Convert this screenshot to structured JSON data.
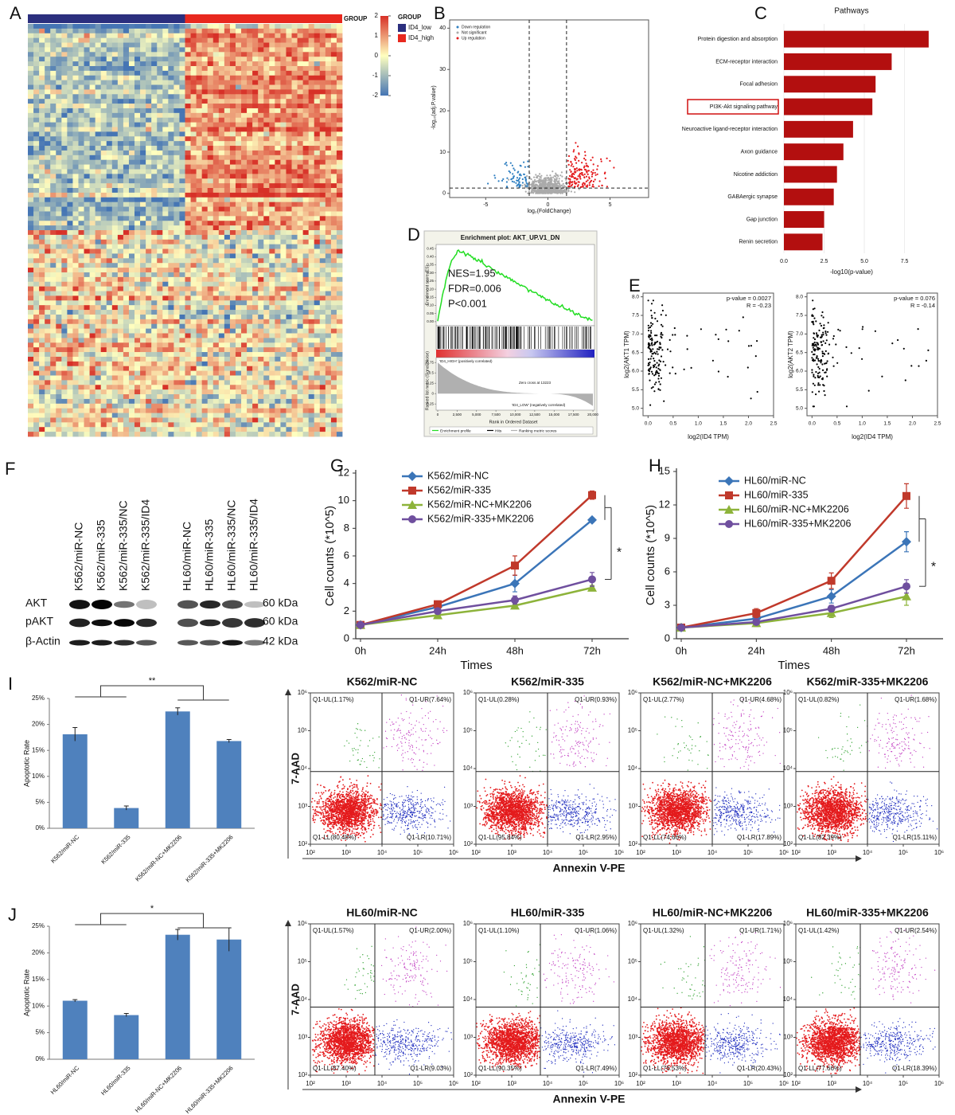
{
  "panel_labels": [
    "A",
    "B",
    "C",
    "D",
    "E",
    "F",
    "G",
    "H",
    "I",
    "J"
  ],
  "heatmap": {
    "row_label": "GROUP",
    "legend_title": "GROUP",
    "groups": [
      "ID4_low",
      "ID4_high"
    ],
    "group_colors": [
      "#2b2f7e",
      "#e8281e"
    ],
    "colorbar_ticks": [
      2,
      1,
      0,
      -1,
      -2
    ]
  },
  "volcano": {
    "legend": [
      "Down regulation",
      "Not significant",
      "Up regulation"
    ],
    "legend_colors": [
      "#2f7fc1",
      "#aaaaaa",
      "#e41a1c"
    ],
    "y_label": "-log₁₀(adj.P.value)",
    "x_label": "log₂(FoldChange)",
    "xlim": [
      -7.9,
      8.1
    ],
    "ylim": [
      -1,
      42
    ],
    "xticks": [
      -5,
      0,
      5
    ],
    "yticks": [
      0,
      10,
      20,
      30,
      40
    ]
  },
  "gsea": {
    "title": "Enrichment plot: AKT_UP.V1_DN",
    "stats": [
      "NES=1.95",
      "FDR=0.006",
      "P<0.001"
    ],
    "y_label": "Enrichment score (ES)",
    "metric_label": "Ranked list metric (Signal2Noise)",
    "x_label": "Rank in Ordered Dataset",
    "high_label": "'ID4_HIGH' (positively correlated)",
    "low_label": "'ID4_LOW' (negatively correlated)",
    "zero_cross": "Zero cross at 13223",
    "legend": [
      "Enrichment profile",
      "Hits",
      "Ranking metric scores"
    ],
    "xlim": [
      0,
      20000
    ],
    "xticks": [
      0,
      {
        "value": 2500,
        "label": "2,500"
      },
      {
        "value": 5000,
        "label": "5,000"
      },
      {
        "value": 7500,
        "label": "7,500"
      },
      {
        "value": 10000,
        "label": "10,000"
      },
      {
        "value": 12500,
        "label": "12,500"
      },
      {
        "value": 15000,
        "label": "15,000"
      },
      {
        "value": 17500,
        "label": "17,500"
      },
      {
        "value": 20000,
        "label": "20,000"
      }
    ],
    "ylim": [
      -0.02,
      0.47
    ],
    "yticks": [
      0.45,
      {
        "value": 0.4,
        "label": "0.40"
      },
      0.35,
      {
        "value": 0.3,
        "label": "0.30"
      },
      0.25,
      {
        "value": 0.2,
        "label": "0.20"
      },
      0.15,
      {
        "value": 0.1,
        "label": "0.10"
      },
      0.05,
      {
        "value": 0,
        "label": "0.00"
      }
    ],
    "metric_ylim": [
      -0.4,
      0.85
    ],
    "metric_yticks": [
      0.75,
      0.5,
      0.25,
      0,
      -0.25
    ]
  },
  "correlation": {
    "x_label": "log2(ID4 TPM)",
    "xlim": [
      -0.1,
      2.5
    ],
    "ylim": [
      4.8,
      8.1
    ],
    "xticks": [
      {
        "value": 0,
        "label": "0.0"
      },
      0.5,
      {
        "value": 1,
        "label": "1.0"
      },
      1.5,
      {
        "value": 2,
        "label": "2.0"
      },
      2.5
    ],
    "yticks": [
      {
        "value": 5,
        "label": "5.0"
      },
      5.5,
      {
        "value": 6,
        "label": "6.0"
      },
      6.5,
      {
        "value": 7,
        "label": "7.0"
      },
      7.5,
      {
        "value": 8,
        "label": "8.0"
      }
    ],
    "plots": [
      {
        "y_label": "log2(AKT1 TPM)",
        "p": "p-value = 0.0027",
        "r": "R = -0.23"
      },
      {
        "y_label": "log2(AKT2 TPM)",
        "p": "p-value = 0.076",
        "r": "R = -0.14"
      }
    ]
  },
  "western": {
    "lanes": [
      "K562/miR-NC",
      "K562/miR-335",
      "K562/miR-335/NC",
      "K562/miR-335/ID4",
      "HL60/miR-NC",
      "HL60/miR-335",
      "HL60/miR-335/NC",
      "HL60/miR-335/ID4"
    ],
    "proteins": [
      "AKT",
      "pAKT",
      "β-Actin"
    ],
    "sizes": [
      "60 kDa",
      "60 kDa",
      "42 kDa"
    ]
  },
  "flow": {
    "y_label": "7-AAD",
    "x_label": "Annexin V-PE",
    "ticks": [
      "10²",
      "10³",
      "10⁴",
      "10⁵",
      "10⁶"
    ],
    "rows": [
      [
        {
          "title": "K562/miR-NC",
          "UL": "Q1-UL(1.17%)",
          "UR": "Q1-UR(7.64%)",
          "LL": "Q1-LL(80.48%)",
          "LR": "Q1-LR(10.71%)"
        },
        {
          "title": "K562/miR-335",
          "UL": "Q1-UL(0.28%)",
          "UR": "Q1-UR(0.93%)",
          "LL": "Q1-LL(95.84%)",
          "LR": "Q1-LR(2.95%)"
        },
        {
          "title": "K562/miR-NC+MK2206",
          "UL": "Q1-UL(2.77%)",
          "UR": "Q1-UR(4.68%)",
          "LL": "Q1-LL(74.66%)",
          "LR": "Q1-LR(17.89%)"
        },
        {
          "title": "K562/miR-335+MK2206",
          "UL": "Q1-UL(0.82%)",
          "UR": "Q1-UR(1.68%)",
          "LL": "Q1-LL(82.39%)",
          "LR": "Q1-LR(15.11%)"
        }
      ],
      [
        {
          "title": "HL60/miR-NC",
          "UL": "Q1-UL(1.57%)",
          "UR": "Q1-UR(2.00%)",
          "LL": "Q1-LL(87.40%)",
          "LR": "Q1-LR(9.03%)"
        },
        {
          "title": "HL60/miR-335",
          "UL": "Q1-UL(1.10%)",
          "UR": "Q1-UR(1.06%)",
          "LL": "Q1-LL(90.35%)",
          "LR": "Q1-LR(7.49%)"
        },
        {
          "title": "HL60/miR-NC+MK2206",
          "UL": "Q1-UL(1.32%)",
          "UR": "Q1-UR(1.71%)",
          "LL": "Q1-LL(76.53%)",
          "LR": "Q1-LR(20.43%)"
        },
        {
          "title": "HL60/miR-335+MK2206",
          "UL": "Q1-UL(1.42%)",
          "UR": "Q1-UR(2.54%)",
          "LL": "Q1-LL(77.66%)",
          "LR": "Q1-LR(18.39%)"
        }
      ]
    ]
  },
  "chart_data": [
    {
      "type": "barh",
      "title": "Pathways",
      "x_label": "-log10(p-value)",
      "categories": [
        "Protein digestion and absorption",
        "ECM-receptor interaction",
        "Focal adhesion",
        "PI3K-Akt signaling pathway",
        "Neuroactive ligand-receptor interaction",
        "Axon guidance",
        "Nicotine addiction",
        "GABAergic synapse",
        "Gap junction",
        "Renin secretion"
      ],
      "values": [
        9.0,
        6.7,
        5.7,
        5.5,
        4.3,
        3.7,
        3.3,
        3.1,
        2.5,
        2.4
      ],
      "color": "#b30f0f",
      "highlight": 3,
      "xlim": [
        0,
        9.4
      ],
      "xticks": [
        {
          "value": 0,
          "label": "0.0"
        },
        2.5,
        {
          "value": 5,
          "label": "5.0"
        },
        7.5
      ],
      "grid": true
    },
    {
      "type": "line",
      "y_label": "Cell counts (*10^5)",
      "x_label": "Times",
      "categories": [
        "0h",
        "24h",
        "48h",
        "72h"
      ],
      "ylim": [
        0,
        12
      ],
      "yticks": [
        0,
        2,
        4,
        6,
        8,
        10,
        12
      ],
      "annotation": "*",
      "series": [
        {
          "name": "K562/miR-NC",
          "color": "#3b75b8",
          "marker": "diamond",
          "values": [
            1,
            2.3,
            4.0,
            8.6
          ],
          "errors": [
            0,
            0.1,
            0.6,
            0.15
          ]
        },
        {
          "name": "K562/miR-335",
          "color": "#c0392b",
          "marker": "square",
          "values": [
            1,
            2.5,
            5.3,
            10.4
          ],
          "errors": [
            0,
            0.15,
            0.7,
            0.3
          ]
        },
        {
          "name": "K562/miR-NC+MK2206",
          "color": "#8db33a",
          "marker": "triangle",
          "values": [
            1,
            1.7,
            2.4,
            3.7
          ],
          "errors": [
            0,
            0.1,
            0.15,
            0.15
          ]
        },
        {
          "name": "K562/miR-335+MK2206",
          "color": "#6f4f9e",
          "marker": "circle",
          "values": [
            1,
            2.0,
            2.8,
            4.3
          ],
          "errors": [
            0,
            0.1,
            0.3,
            0.5
          ]
        }
      ]
    },
    {
      "type": "line",
      "y_label": "Cell counts (*10^5)",
      "x_label": "Times",
      "categories": [
        "0h",
        "24h",
        "48h",
        "72h"
      ],
      "ylim": [
        0,
        15
      ],
      "yticks": [
        0,
        3,
        6,
        9,
        12,
        15
      ],
      "annotation": "*",
      "series": [
        {
          "name": "HL60/miR-NC",
          "color": "#3b75b8",
          "marker": "diamond",
          "values": [
            1,
            1.8,
            3.8,
            8.7
          ],
          "errors": [
            0,
            0.3,
            0.6,
            0.9
          ]
        },
        {
          "name": "HL60/miR-335",
          "color": "#c0392b",
          "marker": "square",
          "values": [
            1,
            2.3,
            5.2,
            12.8
          ],
          "errors": [
            0,
            0.4,
            0.7,
            1.1
          ]
        },
        {
          "name": "HL60/miR-NC+MK2206",
          "color": "#8db33a",
          "marker": "triangle",
          "values": [
            1,
            1.4,
            2.3,
            3.8
          ],
          "errors": [
            0,
            0.3,
            0.4,
            0.8
          ]
        },
        {
          "name": "HL60/miR-335+MK2206",
          "color": "#6f4f9e",
          "marker": "circle",
          "values": [
            1,
            1.5,
            2.7,
            4.7
          ],
          "errors": [
            0,
            0.2,
            0.3,
            0.6
          ]
        }
      ]
    },
    {
      "type": "bar",
      "y_label": "Apoptotic Rate",
      "categories": [
        "K562/miR-NC",
        "K562/miR-335",
        "K562/miR-NC+MK2206",
        "K562/miR-335+MK2206"
      ],
      "values": [
        18.1,
        3.9,
        22.5,
        16.8
      ],
      "errors": [
        1.3,
        0.4,
        0.7,
        0.3
      ],
      "color": "#4f81bd",
      "annotation": "**",
      "ylim": [
        0,
        25
      ],
      "yticks": [
        {
          "value": 0,
          "label": "0%"
        },
        {
          "value": 5,
          "label": "5%"
        },
        {
          "value": 10,
          "label": "10%"
        },
        {
          "value": 15,
          "label": "15%"
        },
        {
          "value": 20,
          "label": "20%"
        },
        {
          "value": 25,
          "label": "25%"
        }
      ]
    },
    {
      "type": "bar",
      "y_label": "Apoptotic Rate",
      "categories": [
        "HL60/miR-NC",
        "HL60/miR-335",
        "HL60/miR-NC+MK2206",
        "HL60/miR-335+MK2206"
      ],
      "values": [
        11.0,
        8.3,
        23.4,
        22.5
      ],
      "errors": [
        0.2,
        0.3,
        1.0,
        2.2
      ],
      "color": "#4f81bd",
      "annotation": "*",
      "ylim": [
        0,
        25
      ],
      "yticks": [
        {
          "value": 0,
          "label": "0%"
        },
        {
          "value": 5,
          "label": "5%"
        },
        {
          "value": 10,
          "label": "10%"
        },
        {
          "value": 15,
          "label": "15%"
        },
        {
          "value": 20,
          "label": "20%"
        },
        {
          "value": 25,
          "label": "25%"
        }
      ]
    }
  ]
}
